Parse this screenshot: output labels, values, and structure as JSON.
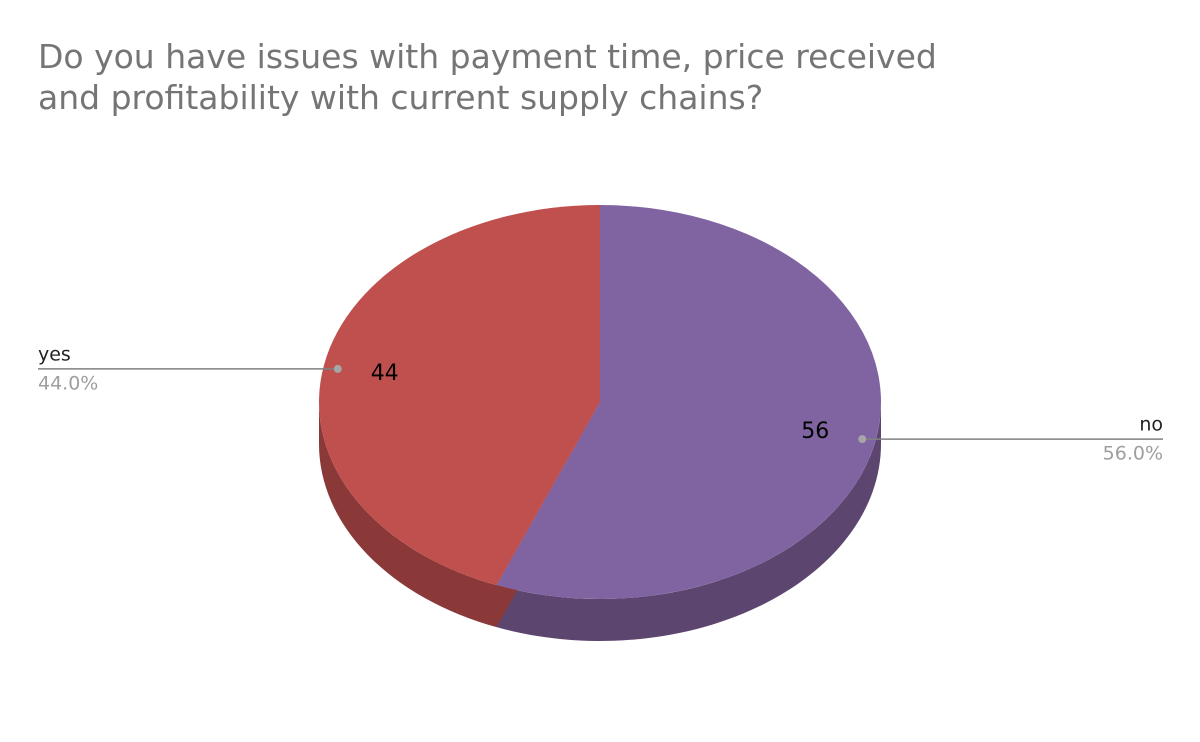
{
  "chart_data": {
    "type": "pie",
    "title": "Do you have issues with payment time, price received and profitability with current supply chains?",
    "categories": [
      "no",
      "yes"
    ],
    "values": [
      56,
      44
    ],
    "percent_labels": [
      "56.0%",
      "44.0%"
    ],
    "colors": [
      "#8064a2",
      "#c0504d"
    ],
    "side_colors": [
      "#5c466f",
      "#8a3838"
    ]
  }
}
